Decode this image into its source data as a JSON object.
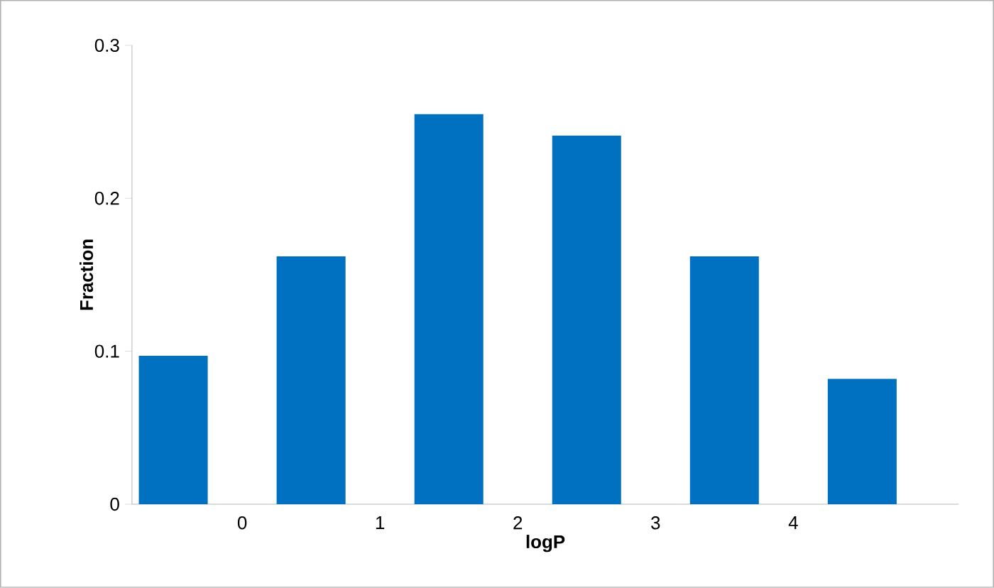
{
  "chart_data": {
    "type": "histogram",
    "xlabel": "logP",
    "ylabel": "Fraction",
    "bins": [
      -1,
      0,
      1,
      2,
      3,
      4,
      5
    ],
    "values": [
      0.097,
      0.162,
      0.255,
      0.241,
      0.162,
      0.082
    ],
    "color": "#0070c0",
    "xlim": [
      -0.8,
      5.2
    ],
    "xticks": [
      0,
      1,
      2,
      3,
      4
    ],
    "ylim": [
      0,
      0.3
    ],
    "yticks": [
      0,
      0.1,
      0.2,
      0.3
    ]
  }
}
